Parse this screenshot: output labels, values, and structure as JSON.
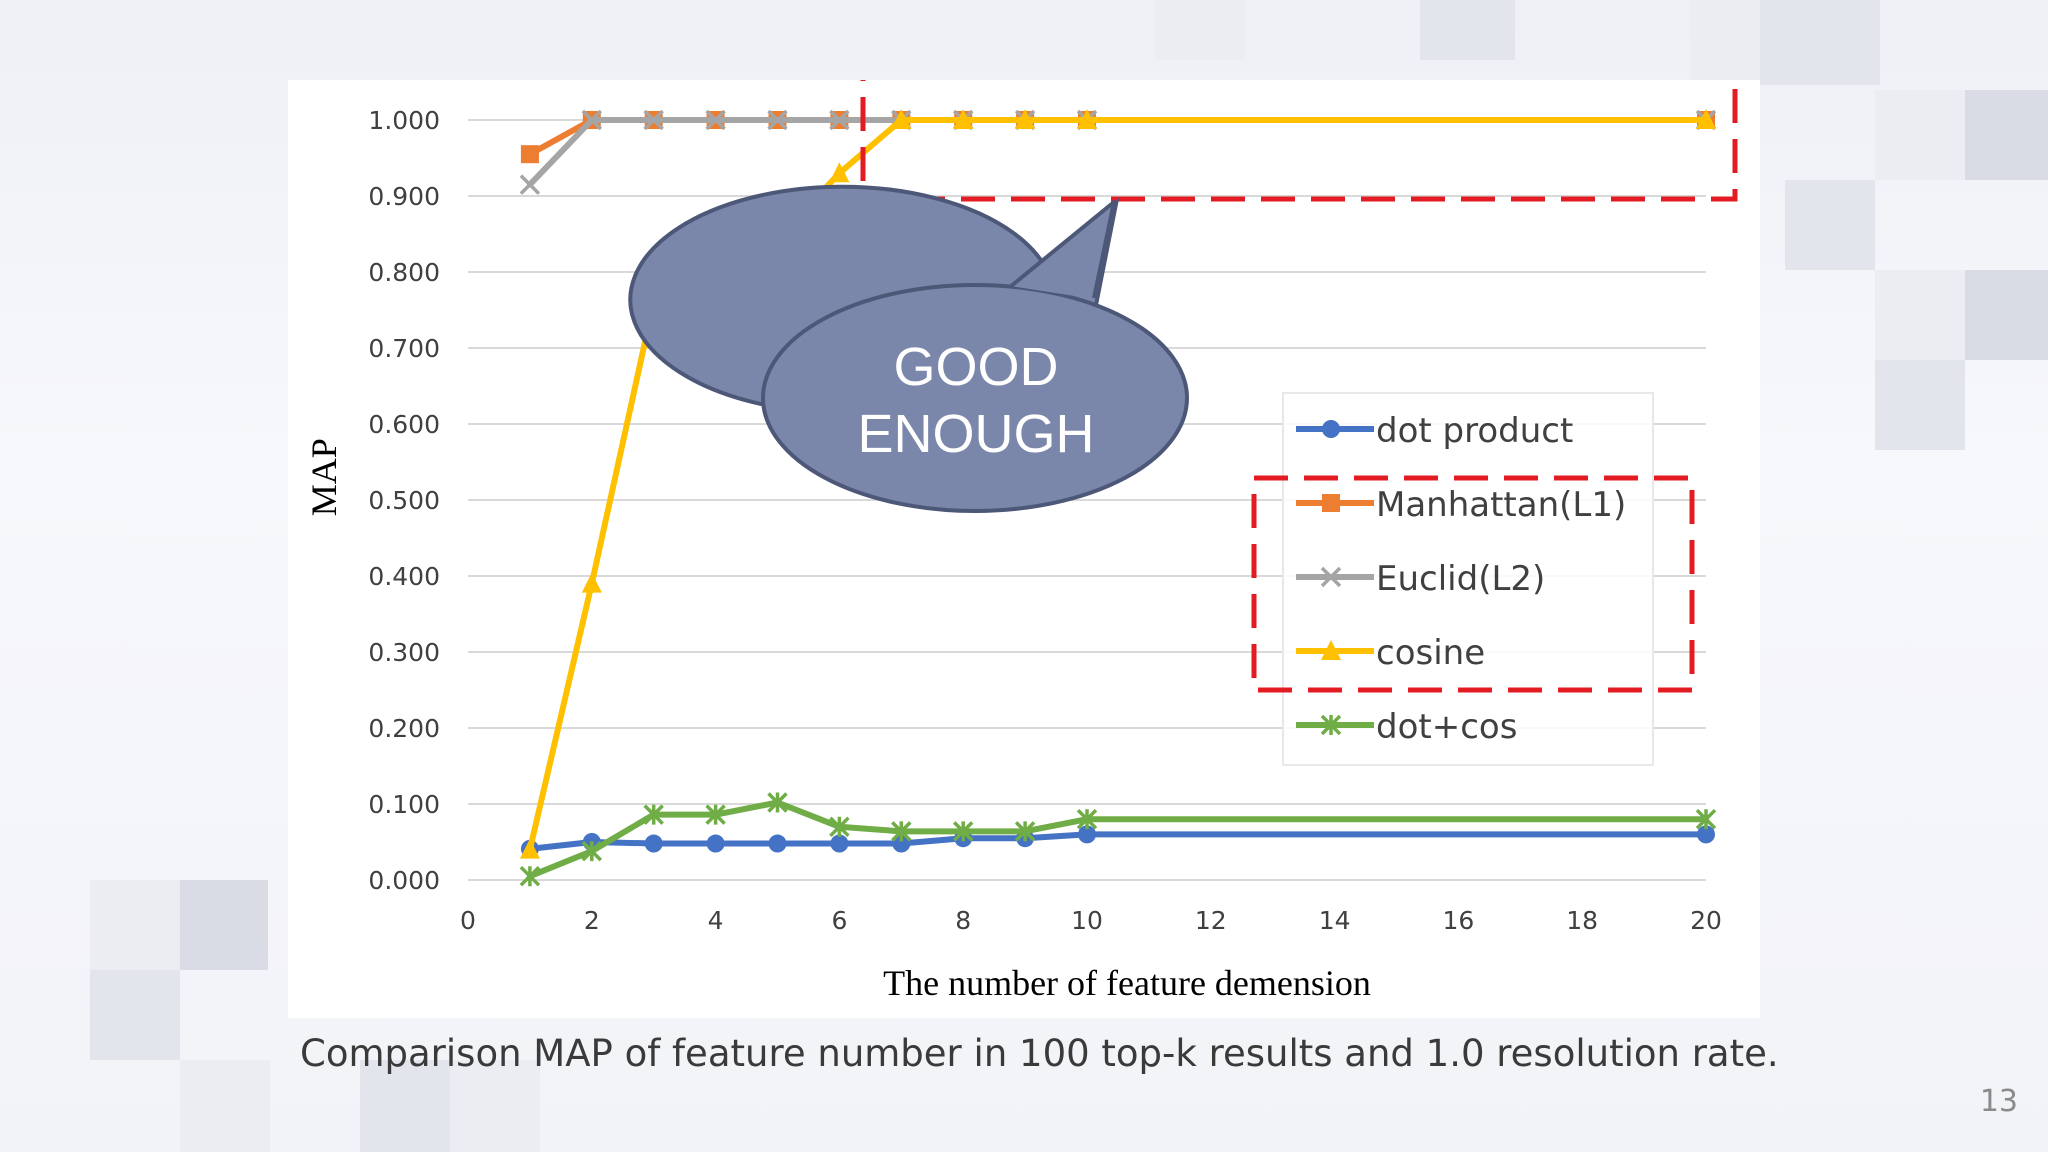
{
  "slide": {
    "caption": "Comparison MAP of feature number in 100 top-k results and 1.0 resolution rate.",
    "page_number": "13"
  },
  "callout": {
    "line1": "GOOD",
    "line2": "ENOUGH",
    "fill_color": "#7a86aa",
    "stroke_color": "#4d5878",
    "text_color": "#ffffff"
  },
  "highlight_color": "#e31b23",
  "chart_data": {
    "type": "line",
    "xlabel": "The number of feature demension",
    "ylabel": "MAP",
    "xlim": [
      0,
      20
    ],
    "ylim": [
      0,
      1
    ],
    "x_ticks": [
      "0",
      "2",
      "4",
      "6",
      "8",
      "10",
      "12",
      "14",
      "16",
      "18",
      "20"
    ],
    "y_ticks": [
      "0.000",
      "0.100",
      "0.200",
      "0.300",
      "0.400",
      "0.500",
      "0.600",
      "0.700",
      "0.800",
      "0.900",
      "1.000"
    ],
    "grid": true,
    "legend_position": "right",
    "x": [
      1,
      2,
      3,
      4,
      5,
      6,
      7,
      8,
      9,
      10,
      20
    ],
    "series": [
      {
        "name": "dot product",
        "color": "#4472c4",
        "marker": "circle",
        "values": [
          0.041,
          0.05,
          0.048,
          0.048,
          0.048,
          0.048,
          0.048,
          0.055,
          0.055,
          0.06,
          0.06
        ]
      },
      {
        "name": "Manhattan(L1)",
        "color": "#ed7d31",
        "marker": "square",
        "values": [
          0.955,
          1.0,
          1.0,
          1.0,
          1.0,
          1.0,
          1.0,
          1.0,
          1.0,
          1.0,
          1.0
        ]
      },
      {
        "name": "Euclid(L2)",
        "color": "#a5a5a5",
        "marker": "x",
        "values": [
          0.915,
          1.0,
          1.0,
          1.0,
          1.0,
          1.0,
          1.0,
          1.0,
          1.0,
          1.0,
          1.0
        ]
      },
      {
        "name": "cosine",
        "color": "#ffc000",
        "marker": "triangle",
        "values": [
          0.04,
          0.39,
          0.76,
          0.852,
          0.843,
          0.93,
          1.0,
          1.0,
          1.0,
          1.0,
          1.0
        ]
      },
      {
        "name": "dot+cos",
        "color": "#70ad47",
        "marker": "star",
        "values": [
          0.005,
          0.038,
          0.086,
          0.086,
          0.102,
          0.07,
          0.064,
          0.064,
          0.064,
          0.08,
          0.08
        ]
      }
    ]
  }
}
